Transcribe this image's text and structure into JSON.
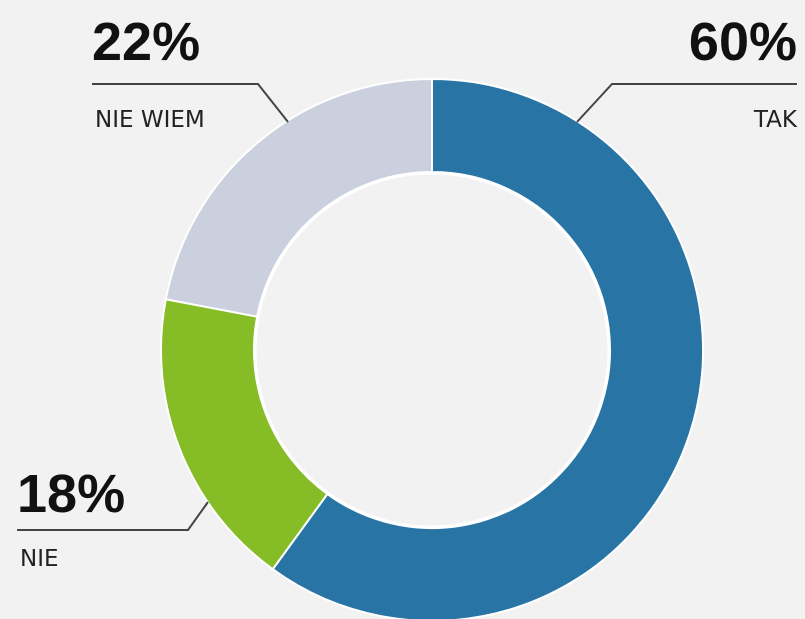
{
  "chart_data": {
    "type": "donut",
    "categories": [
      "TAK",
      "NIE",
      "NIE WIEM"
    ],
    "values": [
      60,
      18,
      22
    ],
    "value_labels": [
      "60%",
      "18%",
      "22%"
    ],
    "colors": [
      "#2874a4",
      "#86bc25",
      "#cbd0de"
    ]
  }
}
